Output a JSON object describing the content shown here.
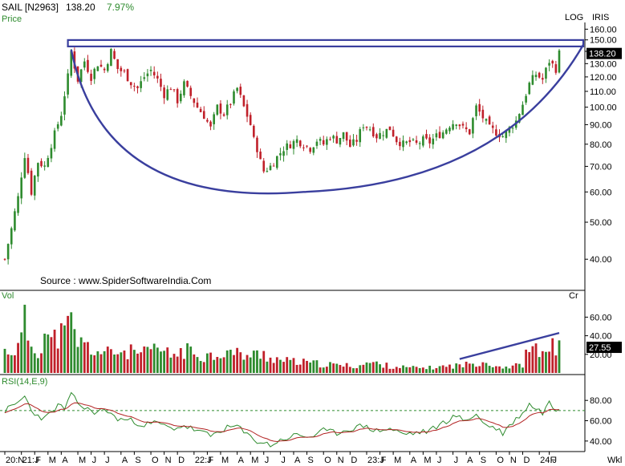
{
  "header": {
    "symbol": "SAIL [N2963]",
    "price": "138.20",
    "change": "7.97%",
    "price_label": "Price",
    "log_label": "LOG",
    "iris_label": "IRIS",
    "source": "Source : www.SpiderSoftwareIndia.Com"
  },
  "colors": {
    "up": "#2e8b2e",
    "down": "#c0202a",
    "pattern": "#3a3f9e",
    "green_text": "#2e8b2e",
    "price_tag_bg": "#000000"
  },
  "chart_data": [
    {
      "type": "candlestick",
      "panel": "price",
      "scale": "log",
      "y_ticks": [
        40,
        50,
        60,
        70,
        80,
        90,
        100,
        110,
        120,
        130,
        140,
        150,
        160
      ],
      "ylim": [
        36,
        165
      ],
      "last_price": 138.2,
      "x_tick_labels": [
        "20:N",
        "21:J",
        "F",
        "M",
        "A",
        "M",
        "J",
        "J",
        "A",
        "S",
        "O",
        "N",
        "D",
        "22:J",
        "F",
        "M",
        "A",
        "M",
        "J",
        "J",
        "A",
        "S",
        "O",
        "N",
        "D",
        "23:J",
        "F",
        "M",
        "A",
        "M",
        "J",
        "J",
        "A",
        "S",
        "O",
        "N",
        "D",
        "24:J",
        "F"
      ],
      "x_tick_weeks": [
        0,
        5,
        9,
        13,
        17,
        22,
        26,
        30,
        35,
        39,
        44,
        48,
        52,
        57,
        61,
        65,
        70,
        74,
        78,
        83,
        87,
        91,
        96,
        100,
        104,
        109,
        113,
        117,
        122,
        126,
        130,
        135,
        139,
        143,
        148,
        152,
        156,
        161,
        164
      ],
      "close_path": [
        {
          "w": 0,
          "c": 40
        },
        {
          "w": 2,
          "c": 48
        },
        {
          "w": 4,
          "c": 58
        },
        {
          "w": 6,
          "c": 75
        },
        {
          "w": 8,
          "c": 60
        },
        {
          "w": 10,
          "c": 72
        },
        {
          "w": 12,
          "c": 70
        },
        {
          "w": 15,
          "c": 85
        },
        {
          "w": 17,
          "c": 96
        },
        {
          "w": 19,
          "c": 120
        },
        {
          "w": 20,
          "c": 140
        },
        {
          "w": 21,
          "c": 128
        },
        {
          "w": 22,
          "c": 118
        },
        {
          "w": 24,
          "c": 132
        },
        {
          "w": 26,
          "c": 120
        },
        {
          "w": 28,
          "c": 130
        },
        {
          "w": 30,
          "c": 125
        },
        {
          "w": 32,
          "c": 140
        },
        {
          "w": 34,
          "c": 126
        },
        {
          "w": 36,
          "c": 123
        },
        {
          "w": 38,
          "c": 116
        },
        {
          "w": 40,
          "c": 112
        },
        {
          "w": 42,
          "c": 120
        },
        {
          "w": 44,
          "c": 125
        },
        {
          "w": 46,
          "c": 118
        },
        {
          "w": 48,
          "c": 108
        },
        {
          "w": 50,
          "c": 113
        },
        {
          "w": 52,
          "c": 104
        },
        {
          "w": 54,
          "c": 115
        },
        {
          "w": 56,
          "c": 107
        },
        {
          "w": 58,
          "c": 100
        },
        {
          "w": 60,
          "c": 95
        },
        {
          "w": 62,
          "c": 88
        },
        {
          "w": 64,
          "c": 100
        },
        {
          "w": 66,
          "c": 96
        },
        {
          "w": 68,
          "c": 103
        },
        {
          "w": 70,
          "c": 112
        },
        {
          "w": 72,
          "c": 100
        },
        {
          "w": 74,
          "c": 90
        },
        {
          "w": 75,
          "c": 82
        },
        {
          "w": 76,
          "c": 78
        },
        {
          "w": 77,
          "c": 72
        },
        {
          "w": 78,
          "c": 68
        },
        {
          "w": 80,
          "c": 70
        },
        {
          "w": 82,
          "c": 74
        },
        {
          "w": 84,
          "c": 78
        },
        {
          "w": 86,
          "c": 80
        },
        {
          "w": 88,
          "c": 82
        },
        {
          "w": 90,
          "c": 80
        },
        {
          "w": 92,
          "c": 78
        },
        {
          "w": 94,
          "c": 82
        },
        {
          "w": 96,
          "c": 80
        },
        {
          "w": 98,
          "c": 84
        },
        {
          "w": 100,
          "c": 82
        },
        {
          "w": 102,
          "c": 85
        },
        {
          "w": 104,
          "c": 79
        },
        {
          "w": 106,
          "c": 82
        },
        {
          "w": 108,
          "c": 90
        },
        {
          "w": 110,
          "c": 88
        },
        {
          "w": 112,
          "c": 84
        },
        {
          "w": 114,
          "c": 86
        },
        {
          "w": 116,
          "c": 88
        },
        {
          "w": 118,
          "c": 82
        },
        {
          "w": 120,
          "c": 80
        },
        {
          "w": 122,
          "c": 81
        },
        {
          "w": 124,
          "c": 80
        },
        {
          "w": 126,
          "c": 82
        },
        {
          "w": 128,
          "c": 81
        },
        {
          "w": 130,
          "c": 84
        },
        {
          "w": 132,
          "c": 86
        },
        {
          "w": 134,
          "c": 90
        },
        {
          "w": 136,
          "c": 92
        },
        {
          "w": 138,
          "c": 88
        },
        {
          "w": 140,
          "c": 86
        },
        {
          "w": 142,
          "c": 100
        },
        {
          "w": 144,
          "c": 94
        },
        {
          "w": 146,
          "c": 88
        },
        {
          "w": 148,
          "c": 86
        },
        {
          "w": 150,
          "c": 84
        },
        {
          "w": 152,
          "c": 88
        },
        {
          "w": 154,
          "c": 92
        },
        {
          "w": 156,
          "c": 102
        },
        {
          "w": 158,
          "c": 115
        },
        {
          "w": 160,
          "c": 122
        },
        {
          "w": 162,
          "c": 118
        },
        {
          "w": 164,
          "c": 132
        },
        {
          "w": 166,
          "c": 126
        },
        {
          "w": 167,
          "c": 138.2
        }
      ],
      "cup_low": 60,
      "resistance": 147,
      "annotations": [
        "cup-arc",
        "resistance-box"
      ]
    },
    {
      "type": "bar",
      "panel": "volume",
      "title": "Vol",
      "right_label": "Cr",
      "y_ticks": [
        20,
        40,
        60
      ],
      "ylim": [
        0,
        75
      ],
      "last_value": "27.55",
      "volume_path": [
        {
          "w": 0,
          "v": 25
        },
        {
          "w": 4,
          "v": 28
        },
        {
          "w": 6,
          "v": 58
        },
        {
          "w": 8,
          "v": 32
        },
        {
          "w": 10,
          "v": 25
        },
        {
          "w": 12,
          "v": 48
        },
        {
          "w": 14,
          "v": 35
        },
        {
          "w": 16,
          "v": 44
        },
        {
          "w": 18,
          "v": 45
        },
        {
          "w": 20,
          "v": 58
        },
        {
          "w": 22,
          "v": 36
        },
        {
          "w": 24,
          "v": 32
        },
        {
          "w": 26,
          "v": 28
        },
        {
          "w": 30,
          "v": 22
        },
        {
          "w": 34,
          "v": 25
        },
        {
          "w": 38,
          "v": 24
        },
        {
          "w": 42,
          "v": 22
        },
        {
          "w": 46,
          "v": 28
        },
        {
          "w": 50,
          "v": 20
        },
        {
          "w": 54,
          "v": 26
        },
        {
          "w": 58,
          "v": 22
        },
        {
          "w": 62,
          "v": 20
        },
        {
          "w": 66,
          "v": 25
        },
        {
          "w": 70,
          "v": 22
        },
        {
          "w": 74,
          "v": 20
        },
        {
          "w": 78,
          "v": 22
        },
        {
          "w": 80,
          "v": 18
        },
        {
          "w": 84,
          "v": 14
        },
        {
          "w": 90,
          "v": 12
        },
        {
          "w": 96,
          "v": 10
        },
        {
          "w": 100,
          "v": 9
        },
        {
          "w": 106,
          "v": 8
        },
        {
          "w": 110,
          "v": 12
        },
        {
          "w": 116,
          "v": 8
        },
        {
          "w": 122,
          "v": 6
        },
        {
          "w": 128,
          "v": 6
        },
        {
          "w": 134,
          "v": 8
        },
        {
          "w": 140,
          "v": 10
        },
        {
          "w": 144,
          "v": 14
        },
        {
          "w": 148,
          "v": 8
        },
        {
          "w": 152,
          "v": 7
        },
        {
          "w": 156,
          "v": 10
        },
        {
          "w": 158,
          "v": 30
        },
        {
          "w": 160,
          "v": 25
        },
        {
          "w": 162,
          "v": 20
        },
        {
          "w": 164,
          "v": 38
        },
        {
          "w": 166,
          "v": 24
        },
        {
          "w": 167,
          "v": 27.55
        }
      ],
      "trendline": [
        {
          "w": 137,
          "v": 15
        },
        {
          "w": 167,
          "v": 43
        }
      ]
    },
    {
      "type": "line",
      "panel": "rsi",
      "title": "RSI(14,E,9)",
      "y_ticks": [
        40,
        60,
        80
      ],
      "ylim": [
        32,
        92
      ],
      "reference_level": 70,
      "rsi_path": [
        {
          "w": 0,
          "v": 70
        },
        {
          "w": 3,
          "v": 75
        },
        {
          "w": 6,
          "v": 84
        },
        {
          "w": 8,
          "v": 70
        },
        {
          "w": 10,
          "v": 65
        },
        {
          "w": 12,
          "v": 62
        },
        {
          "w": 14,
          "v": 68
        },
        {
          "w": 16,
          "v": 75
        },
        {
          "w": 18,
          "v": 72
        },
        {
          "w": 20,
          "v": 85
        },
        {
          "w": 22,
          "v": 78
        },
        {
          "w": 24,
          "v": 72
        },
        {
          "w": 26,
          "v": 70
        },
        {
          "w": 28,
          "v": 68
        },
        {
          "w": 30,
          "v": 72
        },
        {
          "w": 32,
          "v": 66
        },
        {
          "w": 34,
          "v": 62
        },
        {
          "w": 38,
          "v": 60
        },
        {
          "w": 42,
          "v": 56
        },
        {
          "w": 46,
          "v": 58
        },
        {
          "w": 50,
          "v": 52
        },
        {
          "w": 54,
          "v": 55
        },
        {
          "w": 58,
          "v": 50
        },
        {
          "w": 62,
          "v": 45
        },
        {
          "w": 66,
          "v": 52
        },
        {
          "w": 70,
          "v": 55
        },
        {
          "w": 72,
          "v": 48
        },
        {
          "w": 76,
          "v": 40
        },
        {
          "w": 80,
          "v": 36
        },
        {
          "w": 84,
          "v": 42
        },
        {
          "w": 88,
          "v": 46
        },
        {
          "w": 92,
          "v": 44
        },
        {
          "w": 96,
          "v": 50
        },
        {
          "w": 100,
          "v": 48
        },
        {
          "w": 104,
          "v": 52
        },
        {
          "w": 108,
          "v": 55
        },
        {
          "w": 112,
          "v": 50
        },
        {
          "w": 116,
          "v": 52
        },
        {
          "w": 120,
          "v": 47
        },
        {
          "w": 124,
          "v": 48
        },
        {
          "w": 128,
          "v": 50
        },
        {
          "w": 132,
          "v": 58
        },
        {
          "w": 136,
          "v": 65
        },
        {
          "w": 138,
          "v": 60
        },
        {
          "w": 142,
          "v": 66
        },
        {
          "w": 144,
          "v": 58
        },
        {
          "w": 148,
          "v": 52
        },
        {
          "w": 150,
          "v": 48
        },
        {
          "w": 152,
          "v": 55
        },
        {
          "w": 156,
          "v": 68
        },
        {
          "w": 158,
          "v": 76
        },
        {
          "w": 160,
          "v": 72
        },
        {
          "w": 162,
          "v": 68
        },
        {
          "w": 164,
          "v": 78
        },
        {
          "w": 166,
          "v": 70
        },
        {
          "w": 167,
          "v": 74
        }
      ],
      "signal_smoothing": 9
    }
  ],
  "footer": {
    "wk_label": "Wkl"
  }
}
